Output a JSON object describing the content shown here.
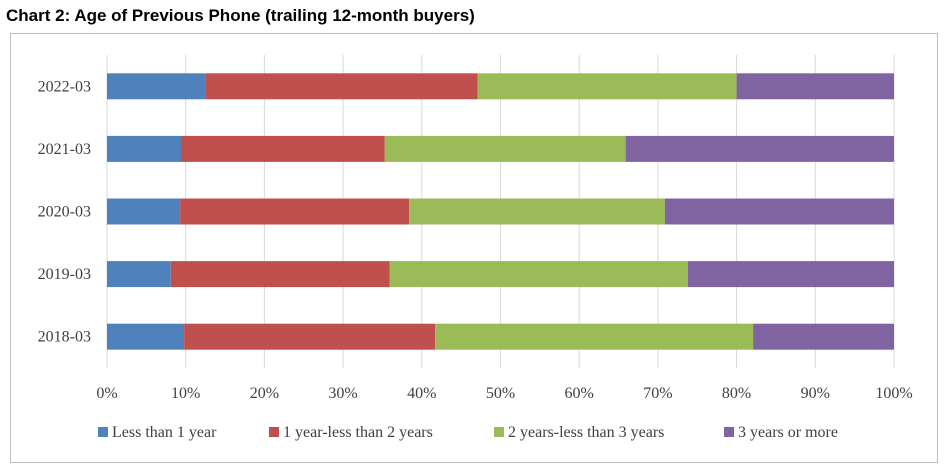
{
  "title": "Chart 2: Age of Previous Phone (trailing 12-month buyers)",
  "chart_data": {
    "type": "bar",
    "orientation": "horizontal",
    "stacked": "percent",
    "title": "Chart 2: Age of Previous Phone (trailing 12-month buyers)",
    "categories": [
      "2022-03",
      "2021-03",
      "2020-03",
      "2019-03",
      "2018-03"
    ],
    "series": [
      {
        "name": "Less than 1 year",
        "color": "#4F81BD",
        "values": [
          12.5,
          9.4,
          9.3,
          8.1,
          9.8
        ]
      },
      {
        "name": "1 year-less than 2 years",
        "color": "#C0504D",
        "values": [
          34.6,
          25.9,
          29.1,
          27.8,
          31.9
        ]
      },
      {
        "name": "2 years-less than 3 years",
        "color": "#9BBB59",
        "values": [
          32.9,
          30.6,
          32.5,
          37.9,
          40.4
        ]
      },
      {
        "name": "3 years or more",
        "color": "#8064A2",
        "values": [
          20.0,
          34.1,
          29.1,
          26.2,
          17.9
        ]
      }
    ],
    "xticks": [
      "0%",
      "10%",
      "20%",
      "30%",
      "40%",
      "50%",
      "60%",
      "70%",
      "80%",
      "90%",
      "100%"
    ],
    "xlim": [
      0,
      100
    ],
    "grid": true,
    "legend_position": "bottom"
  }
}
